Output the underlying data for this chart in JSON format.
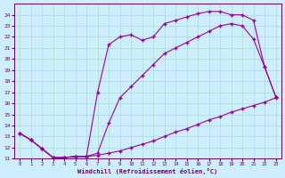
{
  "bg_color": "#cceeff",
  "line_color": "#990099",
  "grid_color": "#aaddcc",
  "xlabel": "Windchill (Refroidissement éolien,°C)",
  "xlim": [
    -0.5,
    23.5
  ],
  "ylim": [
    11,
    25
  ],
  "line_top_x": [
    0,
    1,
    2,
    3,
    4,
    5,
    6,
    7,
    8,
    9,
    10,
    11,
    12,
    13,
    14,
    15,
    16,
    17,
    18,
    19,
    20,
    21,
    22,
    23
  ],
  "line_top_y": [
    13.3,
    12.7,
    11.9,
    11.1,
    11.1,
    11.2,
    11.2,
    17.0,
    21.3,
    22.0,
    22.2,
    21.7,
    22.0,
    23.2,
    23.5,
    23.8,
    24.1,
    24.3,
    24.3,
    24.0,
    24.0,
    23.5,
    19.3,
    16.6
  ],
  "line_mid_x": [
    0,
    1,
    2,
    3,
    4,
    5,
    6,
    7,
    8,
    9,
    10,
    11,
    12,
    13,
    14,
    15,
    16,
    17,
    18,
    19,
    20,
    21,
    22,
    23
  ],
  "line_mid_y": [
    13.3,
    12.7,
    11.9,
    11.1,
    11.1,
    11.2,
    11.2,
    11.5,
    14.2,
    16.5,
    17.5,
    18.5,
    19.5,
    20.5,
    21.0,
    21.5,
    22.0,
    22.5,
    23.0,
    23.2,
    23.0,
    21.8,
    19.3,
    16.6
  ],
  "line_bot_x": [
    0,
    1,
    2,
    3,
    4,
    5,
    6,
    7,
    8,
    9,
    10,
    11,
    12,
    13,
    14,
    15,
    16,
    17,
    18,
    19,
    20,
    21,
    22,
    23
  ],
  "line_bot_y": [
    13.3,
    12.7,
    11.9,
    11.1,
    11.1,
    11.2,
    11.2,
    11.3,
    11.5,
    11.7,
    12.0,
    12.3,
    12.6,
    13.0,
    13.4,
    13.7,
    14.1,
    14.5,
    14.8,
    15.2,
    15.5,
    15.8,
    16.1,
    16.5
  ]
}
